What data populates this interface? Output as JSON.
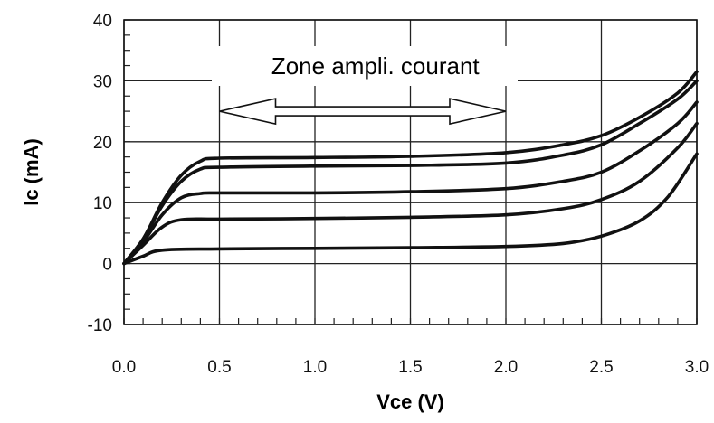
{
  "chart_data": {
    "type": "line",
    "xlabel": "Vce (V)",
    "ylabel": "Ic (mA)",
    "xlim": [
      0,
      3
    ],
    "ylim": [
      -10,
      40
    ],
    "xticks": [
      "0.0",
      "0.5",
      "1.0",
      "1.5",
      "2.0",
      "2.5",
      "3.0"
    ],
    "yticks": [
      "40",
      "30",
      "20",
      "10",
      "0",
      "-10"
    ],
    "grid": true,
    "annotation": {
      "text": "Zone ampli. courant",
      "arrow_from_x": 0.5,
      "arrow_to_x": 2.0,
      "arrow_y": 25
    },
    "series": [
      {
        "values": [
          [
            0,
            0
          ],
          [
            0.1,
            4
          ],
          [
            0.2,
            10
          ],
          [
            0.3,
            14.5
          ],
          [
            0.4,
            16.8
          ],
          [
            0.5,
            17.3
          ],
          [
            1.0,
            17.4
          ],
          [
            1.5,
            17.6
          ],
          [
            2.0,
            18.2
          ],
          [
            2.3,
            19.5
          ],
          [
            2.5,
            21
          ],
          [
            2.7,
            24
          ],
          [
            2.9,
            28
          ],
          [
            3.0,
            31.5
          ]
        ]
      },
      {
        "values": [
          [
            0,
            0
          ],
          [
            0.1,
            4
          ],
          [
            0.2,
            9.5
          ],
          [
            0.3,
            13.5
          ],
          [
            0.4,
            15.5
          ],
          [
            0.5,
            15.8
          ],
          [
            1.0,
            16.0
          ],
          [
            1.5,
            16.1
          ],
          [
            2.0,
            16.5
          ],
          [
            2.3,
            17.8
          ],
          [
            2.5,
            19.5
          ],
          [
            2.7,
            23
          ],
          [
            2.9,
            27
          ],
          [
            3.0,
            30
          ]
        ]
      },
      {
        "values": [
          [
            0,
            0
          ],
          [
            0.1,
            3.5
          ],
          [
            0.2,
            8
          ],
          [
            0.3,
            10.8
          ],
          [
            0.4,
            11.5
          ],
          [
            0.5,
            11.6
          ],
          [
            1.0,
            11.6
          ],
          [
            1.5,
            11.8
          ],
          [
            2.0,
            12.3
          ],
          [
            2.3,
            13.5
          ],
          [
            2.5,
            15
          ],
          [
            2.7,
            18.5
          ],
          [
            2.9,
            23
          ],
          [
            3.0,
            26.5
          ]
        ]
      },
      {
        "values": [
          [
            0,
            0
          ],
          [
            0.1,
            3
          ],
          [
            0.2,
            6
          ],
          [
            0.3,
            7.2
          ],
          [
            0.5,
            7.3
          ],
          [
            1.0,
            7.4
          ],
          [
            1.5,
            7.6
          ],
          [
            2.0,
            8
          ],
          [
            2.3,
            9
          ],
          [
            2.5,
            10.5
          ],
          [
            2.7,
            13.5
          ],
          [
            2.9,
            19
          ],
          [
            3.0,
            23
          ]
        ]
      },
      {
        "values": [
          [
            0,
            0
          ],
          [
            0.1,
            1.2
          ],
          [
            0.2,
            2.2
          ],
          [
            0.5,
            2.4
          ],
          [
            1.0,
            2.5
          ],
          [
            1.5,
            2.6
          ],
          [
            2.0,
            2.8
          ],
          [
            2.3,
            3.3
          ],
          [
            2.5,
            4.5
          ],
          [
            2.7,
            7
          ],
          [
            2.85,
            11
          ],
          [
            3.0,
            18
          ]
        ]
      }
    ]
  }
}
